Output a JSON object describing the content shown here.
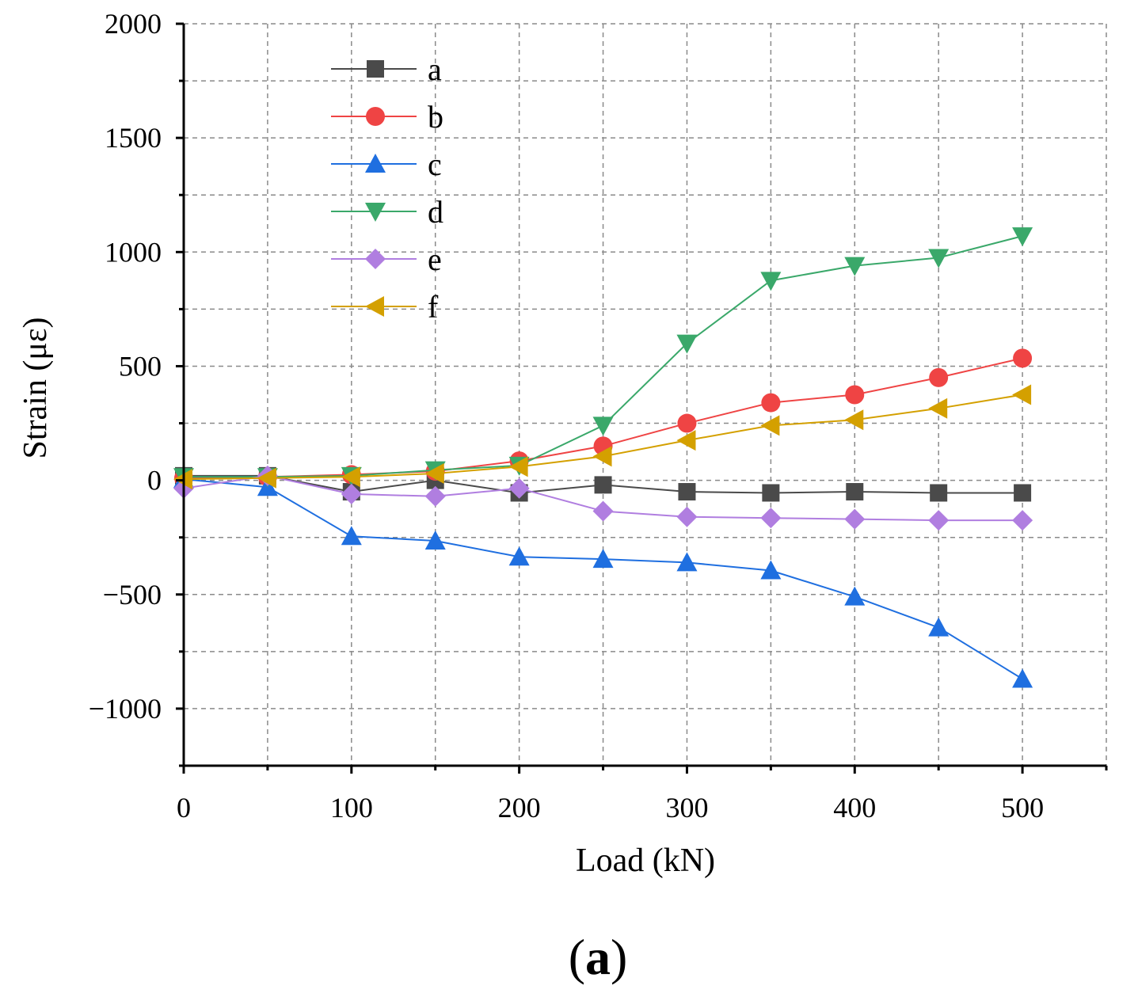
{
  "chart_data": {
    "type": "line",
    "title": "",
    "xlabel": "Load (kN)",
    "ylabel": "Strain (με)",
    "xlim": [
      0,
      550
    ],
    "ylim": [
      -1250,
      2000
    ],
    "x_ticks": [
      0,
      100,
      200,
      300,
      400,
      500
    ],
    "x_tick_labels": [
      "0",
      "100",
      "200",
      "300",
      "400",
      "500"
    ],
    "x_minor_ticks": [
      50,
      150,
      250,
      350,
      450,
      550
    ],
    "y_ticks": [
      -1000,
      -500,
      0,
      500,
      1000,
      1500,
      2000
    ],
    "y_tick_labels": [
      "−1000",
      "−500",
      "0",
      "500",
      "1000",
      "1500",
      "2000"
    ],
    "y_minor_ticks": [
      -1250,
      -750,
      -250,
      250,
      750,
      1250,
      1750
    ],
    "grid": true,
    "legend_position": "top-left",
    "x": [
      0,
      50,
      100,
      150,
      200,
      250,
      300,
      350,
      400,
      450,
      500
    ],
    "series": [
      {
        "name": "a",
        "color": "#4a4a4a",
        "marker": "square",
        "values": [
          20,
          20,
          -50,
          0,
          -55,
          -20,
          -50,
          -55,
          -50,
          -55,
          -55
        ]
      },
      {
        "name": "b",
        "color": "#ef4444",
        "marker": "circle",
        "values": [
          10,
          15,
          25,
          40,
          85,
          150,
          250,
          340,
          375,
          450,
          535
        ]
      },
      {
        "name": "c",
        "color": "#1f6fe0",
        "marker": "triangle-up",
        "values": [
          5,
          -30,
          -245,
          -265,
          -335,
          -345,
          -360,
          -395,
          -510,
          -645,
          -870
        ]
      },
      {
        "name": "d",
        "color": "#3aa86a",
        "marker": "triangle-down",
        "values": [
          15,
          15,
          20,
          45,
          65,
          240,
          600,
          875,
          940,
          975,
          1070
        ]
      },
      {
        "name": "e",
        "color": "#b07ee0",
        "marker": "diamond",
        "values": [
          -35,
          20,
          -60,
          -70,
          -35,
          -135,
          -160,
          -165,
          -170,
          -175,
          -175
        ]
      },
      {
        "name": "f",
        "color": "#d4a000",
        "marker": "triangle-left",
        "values": [
          5,
          10,
          15,
          30,
          60,
          105,
          175,
          240,
          265,
          315,
          375
        ]
      }
    ]
  },
  "caption": {
    "open": "(",
    "letter": "a",
    "close": ")"
  }
}
